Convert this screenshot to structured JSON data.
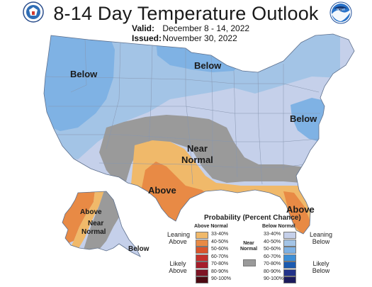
{
  "header": {
    "title": "8-14 Day Temperature Outlook",
    "valid_label": "Valid:",
    "valid_value": "December 8 - 14, 2022",
    "issued_label": "Issued:",
    "issued_value": "November 30, 2022",
    "noaa_text": "NOAA"
  },
  "map_labels": {
    "below_west": "Below",
    "below_north": "Below",
    "below_east": "Below",
    "near_normal_1": "Near",
    "near_normal_2": "Normal",
    "above_south": "Above",
    "above_florida": "Above",
    "ak_above": "Above",
    "ak_near_1": "Near",
    "ak_near_2": "Normal",
    "ak_below": "Below"
  },
  "colors": {
    "below_33_40": "#c5d0ea",
    "below_40_50": "#a3c4e6",
    "below_50_60": "#7fb2e4",
    "below_60_70": "#3d8fd6",
    "below_70_80": "#1c5bb0",
    "below_80_90": "#23338a",
    "below_90_100": "#1b1b5c",
    "above_33_40": "#f0b96a",
    "above_40_50": "#e88a45",
    "above_50_60": "#d9542c",
    "above_60_70": "#c4302b",
    "above_70_80": "#a51e2b",
    "above_80_90": "#7e1424",
    "above_90_100": "#4c0a12",
    "near_normal": "#9a9a9a"
  },
  "legend": {
    "title": "Probability (Percent Chance)",
    "above_header": "Above Normal",
    "below_header": "Below Normal",
    "near_header_1": "Near",
    "near_header_2": "Normal",
    "leaning_above_1": "Leaning",
    "leaning_above_2": "Above",
    "likely_above_1": "Likely",
    "likely_above_2": "Above",
    "leaning_below_1": "Leaning",
    "leaning_below_2": "Below",
    "likely_below_1": "Likely",
    "likely_below_2": "Below",
    "ranges": [
      "33-40%",
      "40-50%",
      "50-60%",
      "60-70%",
      "70-80%",
      "80-90%",
      "90-100%"
    ]
  }
}
